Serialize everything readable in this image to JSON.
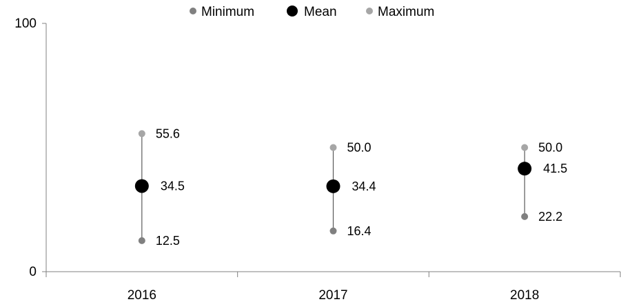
{
  "chart_data": {
    "type": "scatter",
    "categories": [
      "2016",
      "2017",
      "2018"
    ],
    "ylim": [
      0,
      100
    ],
    "yticks": [
      0,
      100
    ],
    "grid": false,
    "legend_position": "top-center",
    "series": [
      {
        "name": "Minimum",
        "values": [
          12.5,
          16.4,
          22.2
        ],
        "labels": [
          "12.5",
          "16.4",
          "22.2"
        ],
        "color": "#808080"
      },
      {
        "name": "Mean",
        "values": [
          34.5,
          34.4,
          41.5
        ],
        "labels": [
          "34.5",
          "34.4",
          "41.5"
        ],
        "color": "#000000"
      },
      {
        "name": "Maximum",
        "values": [
          55.6,
          50.0,
          50.0
        ],
        "labels": [
          "55.6",
          "50.0",
          "50.0"
        ],
        "color": "#a6a6a6"
      }
    ],
    "range_line_color": "#595959",
    "axis_color": "#808080"
  }
}
